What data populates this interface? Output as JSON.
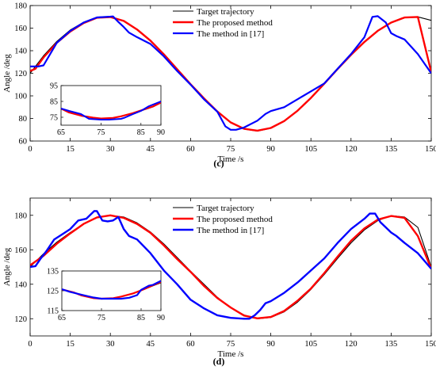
{
  "chart_data": [
    {
      "panel_label": "(c)",
      "type": "line",
      "xlabel": "Time /s",
      "ylabel": "Angle /deg",
      "xlim": [
        0,
        150
      ],
      "ylim": [
        60,
        180
      ],
      "x_ticks": [
        0,
        15,
        30,
        45,
        60,
        75,
        90,
        105,
        120,
        135,
        150
      ],
      "y_ticks": [
        60,
        80,
        100,
        120,
        140,
        160,
        180
      ],
      "legend_position": "top-right",
      "series": [
        {
          "name": "Target trajectory",
          "color": "#000000",
          "x": [
            0,
            5,
            10,
            15,
            20,
            25,
            30,
            35,
            40,
            45,
            50,
            55,
            60,
            65,
            70,
            75,
            80,
            85,
            90,
            95,
            100,
            105,
            110,
            115,
            120,
            125,
            130,
            135,
            140,
            145,
            150
          ],
          "values": [
            120,
            135.5,
            148.2,
            158.3,
            165.2,
            169.6,
            170.0,
            166.0,
            158.4,
            148.5,
            136.5,
            123.3,
            110.0,
            97.4,
            85.8,
            76.2,
            70.5,
            68.8,
            71.3,
            77.4,
            86.5,
            97.8,
            110.4,
            123.4,
            136.0,
            147.5,
            157.3,
            164.6,
            169.2,
            170.0,
            166.9
          ]
        },
        {
          "name": "The proposed method",
          "color": "#ff0000",
          "x": [
            0,
            2,
            5,
            10,
            15,
            20,
            25,
            30,
            35,
            40,
            45,
            50,
            55,
            60,
            65,
            70,
            75,
            80,
            85,
            90,
            95,
            100,
            105,
            110,
            115,
            120,
            125,
            130,
            135,
            140,
            145,
            150
          ],
          "values": [
            122,
            124,
            134,
            147,
            157,
            164.5,
            169.2,
            169.8,
            166.4,
            158.8,
            148.9,
            136.8,
            123.6,
            110.3,
            97.8,
            86.2,
            76.5,
            70.8,
            69.2,
            71.6,
            77.7,
            86.8,
            98.2,
            110.8,
            123.8,
            136.3,
            147.8,
            157.6,
            164.9,
            169.4,
            169.9,
            121
          ]
        },
        {
          "name": "The method in [17]",
          "color": "#0000ff",
          "x": [
            0,
            3,
            5,
            7,
            10,
            15,
            20,
            25,
            30,
            31,
            33,
            35,
            37,
            40,
            45,
            50,
            55,
            60,
            65,
            70,
            73,
            75,
            77,
            80,
            85,
            88,
            90,
            95,
            100,
            105,
            110,
            115,
            120,
            125,
            128,
            130,
            133,
            135,
            137,
            140,
            145,
            150
          ],
          "values": [
            126,
            126,
            127,
            135,
            147,
            157.5,
            165,
            169.5,
            170.2,
            170.4,
            165.5,
            161,
            156,
            152,
            146,
            135,
            122,
            110,
            97,
            86,
            73,
            70,
            70,
            72,
            78,
            84,
            86.5,
            90,
            97,
            104,
            111,
            124,
            137,
            152,
            170,
            170.6,
            165,
            155.5,
            153,
            150,
            137,
            120
          ]
        }
      ],
      "inset": {
        "xlim": [
          65,
          90
        ],
        "ylim": [
          70,
          95
        ],
        "x_ticks": [
          65,
          75,
          85,
          90
        ],
        "y_ticks": [
          75,
          85,
          95
        ],
        "series": [
          {
            "name": "Target trajectory",
            "x": [
              65,
              67,
              70,
              73,
              75,
              78,
              80,
              83,
              85,
              88,
              90
            ],
            "values": [
              80,
              78.5,
              76,
              74.5,
              74,
              74.5,
              75.5,
              77.5,
              79,
              81.5,
              84
            ]
          },
          {
            "name": "The proposed method",
            "x": [
              65,
              67,
              70,
              73,
              75,
              78,
              80,
              83,
              85,
              88,
              90
            ],
            "values": [
              80.5,
              78,
              76,
              74.8,
              74.2,
              74.6,
              75.6,
              77.6,
              79.3,
              81.8,
              84.3
            ]
          },
          {
            "name": "The method in [17]",
            "x": [
              65,
              67,
              70,
              72,
              75,
              77,
              80,
              81,
              83,
              85,
              87,
              90
            ],
            "values": [
              80.5,
              79,
              77,
              74,
              73.5,
              73.5,
              74,
              74.8,
              77,
              79,
              82,
              85
            ]
          }
        ]
      }
    },
    {
      "panel_label": "(d)",
      "type": "line",
      "xlabel": "Time /s",
      "ylabel": "Angle /deg",
      "xlim": [
        0,
        150
      ],
      "ylim": [
        110,
        190
      ],
      "x_ticks": [
        0,
        15,
        30,
        45,
        60,
        75,
        90,
        105,
        120,
        135,
        150
      ],
      "y_ticks": [
        120,
        140,
        160,
        180
      ],
      "legend_position": "top-right",
      "series": [
        {
          "name": "Target trajectory",
          "color": "#000000",
          "x": [
            0,
            5,
            10,
            15,
            20,
            25,
            30,
            35,
            40,
            45,
            50,
            55,
            60,
            65,
            70,
            75,
            80,
            85,
            90,
            95,
            100,
            105,
            110,
            115,
            120,
            125,
            130,
            135,
            140,
            145,
            150
          ],
          "values": [
            150,
            157.7,
            164.4,
            170.0,
            175.0,
            178.6,
            180.0,
            179.0,
            175.6,
            170.3,
            163.4,
            155.5,
            147.6,
            140.0,
            132.5,
            126.3,
            122.2,
            120.0,
            120.7,
            124.0,
            129.6,
            137.0,
            145.7,
            155.0,
            164.0,
            171.5,
            176.9,
            179.8,
            179.0,
            173.0,
            150
          ]
        },
        {
          "name": "The proposed method",
          "color": "#ff0000",
          "x": [
            0,
            5,
            10,
            15,
            20,
            25,
            30,
            35,
            40,
            45,
            50,
            55,
            60,
            65,
            70,
            75,
            80,
            85,
            90,
            95,
            100,
            105,
            110,
            115,
            120,
            125,
            130,
            135,
            140,
            145,
            150
          ],
          "values": [
            151,
            156.5,
            163.5,
            169.5,
            175,
            178.8,
            180,
            178.5,
            175,
            169.8,
            162.5,
            154.6,
            147.2,
            139,
            132,
            126.5,
            121.8,
            120.2,
            121,
            124.5,
            130.4,
            137.5,
            146.5,
            156,
            165.2,
            172.4,
            177.5,
            179.6,
            178.5,
            168,
            149
          ]
        },
        {
          "name": "The method in [17]",
          "color": "#0000ff",
          "x": [
            0,
            2,
            4,
            6,
            9,
            12,
            15,
            18,
            21,
            24,
            25,
            27,
            29,
            31,
            33,
            35,
            37,
            40,
            45,
            50,
            55,
            60,
            65,
            70,
            75,
            80,
            82,
            84,
            86,
            88,
            90,
            95,
            100,
            105,
            110,
            115,
            120,
            125,
            127,
            129,
            131,
            133,
            135,
            137,
            140,
            145,
            150
          ],
          "values": [
            150,
            150.5,
            155,
            159,
            166,
            169,
            172,
            177,
            178,
            182.5,
            182.4,
            177,
            176.5,
            177,
            179,
            172,
            168,
            166,
            158,
            148,
            140,
            131,
            126,
            122,
            120.5,
            120,
            120,
            122,
            125,
            129,
            130.2,
            135,
            141,
            148,
            155,
            164,
            172,
            178,
            181,
            181,
            176,
            173,
            170,
            168,
            164,
            158,
            149
          ]
        }
      ],
      "inset": {
        "xlim": [
          65,
          90
        ],
        "ylim": [
          115,
          135
        ],
        "x_ticks": [
          65,
          75,
          85,
          90
        ],
        "y_ticks": [
          115,
          125,
          135
        ],
        "series": [
          {
            "name": "Target trajectory",
            "x": [
              65,
              68,
              70,
              73,
              75,
              78,
              80,
              83,
              85,
              88,
              90
            ],
            "values": [
              125.5,
              124,
              122.5,
              121.2,
              121,
              121.2,
              122,
              123.5,
              125,
              127.5,
              129
            ]
          },
          {
            "name": "The proposed method",
            "x": [
              65,
              68,
              70,
              73,
              75,
              78,
              80,
              83,
              85,
              88,
              90
            ],
            "values": [
              125.7,
              124.2,
              122.6,
              121.3,
              121,
              121.3,
              122.1,
              123.7,
              125.2,
              127.8,
              129.5
            ]
          },
          {
            "name": "The method in [17]",
            "x": [
              65,
              67,
              70,
              73,
              75,
              77,
              80,
              82,
              84,
              85,
              87,
              88,
              90
            ],
            "values": [
              125.8,
              124.5,
              123,
              121.6,
              121,
              121,
              121,
              121.5,
              122.8,
              125.5,
              127.6,
              128,
              130
            ]
          }
        ]
      }
    }
  ]
}
